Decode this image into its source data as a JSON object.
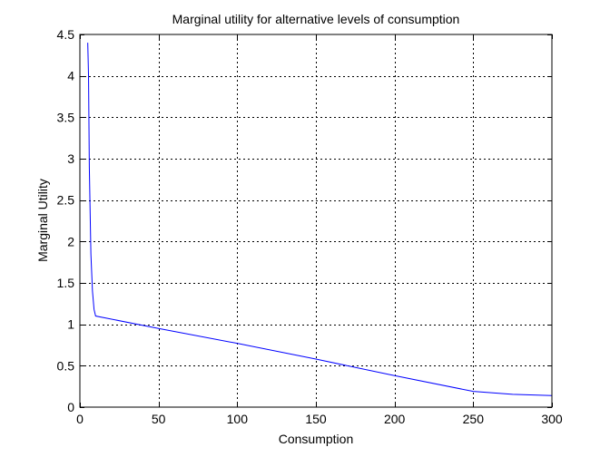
{
  "chart_data": {
    "type": "line",
    "title": "Marginal utility for alternative levels of consumption",
    "xlabel": "Consumption",
    "ylabel": "Marginal Utility",
    "xlim": [
      0,
      300
    ],
    "ylim": [
      0,
      4.5
    ],
    "xticks": [
      0,
      50,
      100,
      150,
      200,
      250,
      300
    ],
    "xtick_labels": [
      "0",
      "50",
      "100",
      "150",
      "200",
      "250",
      "300"
    ],
    "yticks": [
      0,
      0.5,
      1,
      1.5,
      2,
      2.5,
      3,
      3.5,
      4,
      4.5
    ],
    "ytick_labels": [
      "0",
      "0.5",
      "1",
      "1.5",
      "2",
      "2.5",
      "3",
      "3.5",
      "4",
      "4.5"
    ],
    "grid": true,
    "grid_style": "dotted",
    "series": [
      {
        "color": "#0000ff",
        "x": [
          5,
          5.5,
          6,
          7,
          8,
          9,
          10,
          50,
          100,
          150,
          200,
          250,
          275,
          300
        ],
        "y": [
          4.4,
          4.0,
          2.9,
          1.85,
          1.4,
          1.18,
          1.1,
          0.95,
          0.77,
          0.58,
          0.38,
          0.19,
          0.155,
          0.14
        ]
      }
    ]
  }
}
